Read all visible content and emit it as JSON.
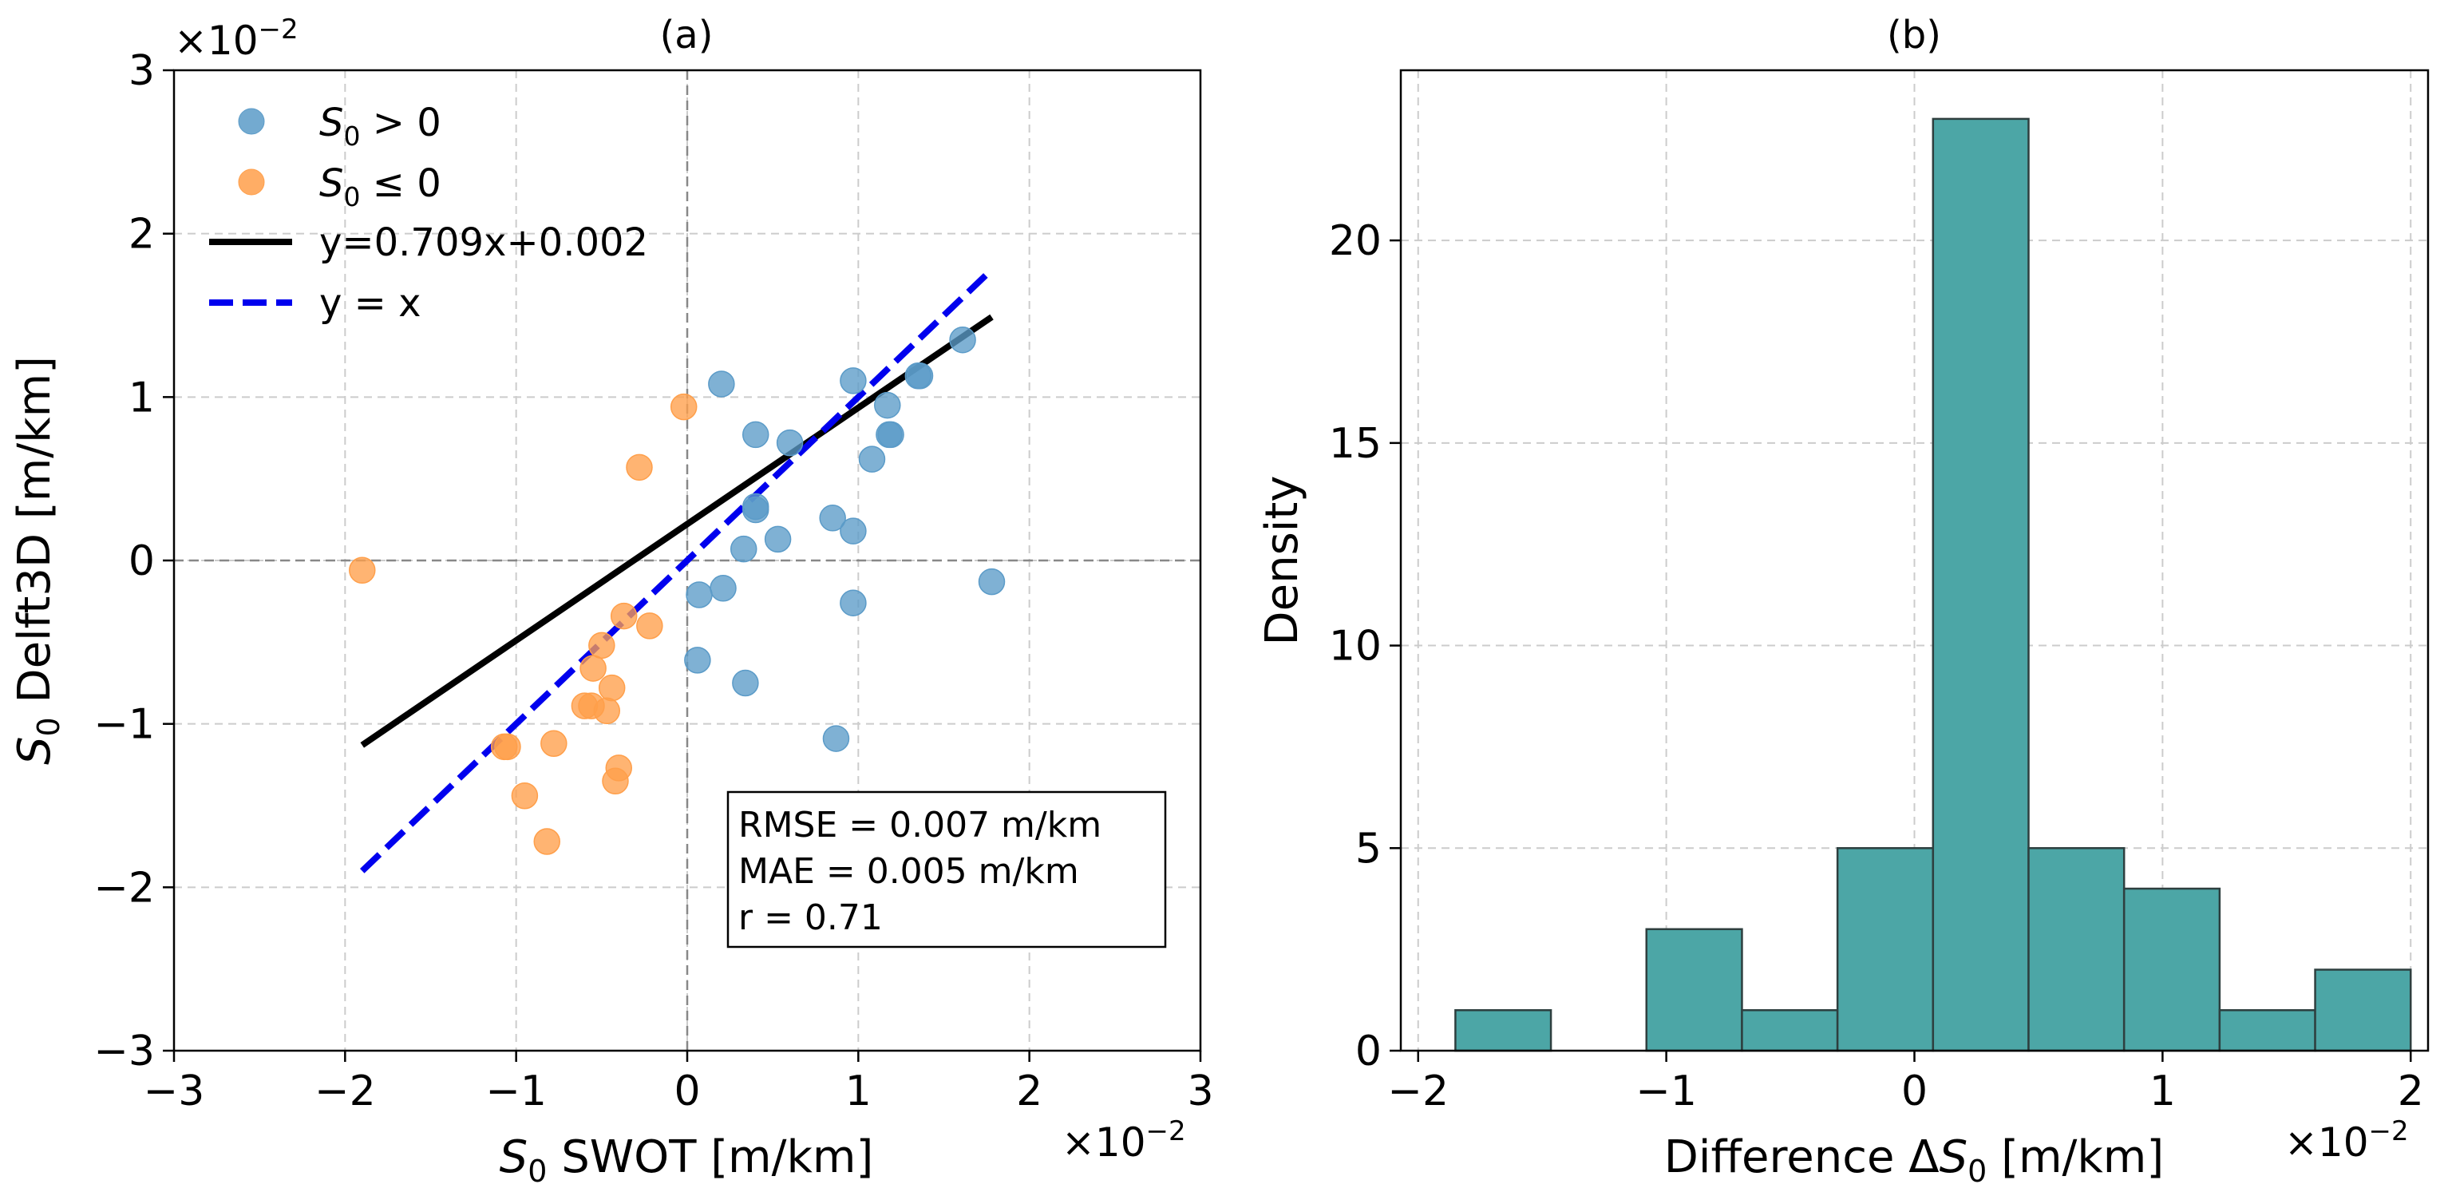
{
  "chart_data": [
    {
      "id": "a",
      "type": "scatter",
      "title": "(a)",
      "xlabel": {
        "italic": "S",
        "sub": "0",
        "rest": " SWOT [m/km]"
      },
      "ylabel": {
        "italic": "S",
        "sub": "0",
        "rest": " Delft3D [m/km]"
      },
      "xlim": [
        -3,
        3
      ],
      "ylim": [
        -3,
        3
      ],
      "xticks": [
        -3,
        -2,
        -1,
        0,
        1,
        2,
        3
      ],
      "yticks": [
        -3,
        -2,
        -1,
        0,
        1,
        2,
        3
      ],
      "xtick_labels": [
        "−3",
        "−2",
        "−1",
        "0",
        "1",
        "2",
        "3"
      ],
      "ytick_labels": [
        "−3",
        "−2",
        "−1",
        "0",
        "1",
        "2",
        "3"
      ],
      "x_scale_label": "×10",
      "y_scale_label": "×10",
      "scale_exponent": "−2",
      "grid": true,
      "legend": {
        "placement": "top-left",
        "entries": [
          {
            "italic": "S",
            "sub": "0",
            "rest": " > 0",
            "kind": "marker",
            "color": "#5b9bc8"
          },
          {
            "italic": "S",
            "sub": "0",
            "rest": " ≤ 0",
            "kind": "marker",
            "color": "#ff9f4a"
          },
          {
            "label": "y=0.709x+0.002",
            "kind": "line",
            "color": "#000000"
          },
          {
            "label": "y = x",
            "kind": "dashed",
            "color": "#0000ee"
          }
        ]
      },
      "series": [
        {
          "name": "S0 > 0",
          "color": "#5b9bc8",
          "points": [
            [
              0.2,
              1.08
            ],
            [
              0.4,
              0.77
            ],
            [
              0.6,
              0.72
            ],
            [
              0.4,
              0.31
            ],
            [
              0.4,
              0.33
            ],
            [
              0.33,
              0.07
            ],
            [
              0.53,
              0.13
            ],
            [
              0.85,
              0.26
            ],
            [
              0.97,
              0.18
            ],
            [
              0.97,
              1.1
            ],
            [
              1.08,
              0.62
            ],
            [
              1.17,
              0.95
            ],
            [
              1.18,
              0.77
            ],
            [
              1.19,
              0.77
            ],
            [
              1.35,
              1.13
            ],
            [
              1.36,
              1.13
            ],
            [
              1.61,
              1.35
            ],
            [
              0.07,
              -0.21
            ],
            [
              0.21,
              -0.17
            ],
            [
              0.06,
              -0.61
            ],
            [
              0.34,
              -0.75
            ],
            [
              0.97,
              -0.26
            ],
            [
              0.87,
              -1.09
            ],
            [
              1.78,
              -0.13
            ]
          ]
        },
        {
          "name": "S0 <= 0",
          "color": "#ff9f4a",
          "points": [
            [
              -0.02,
              0.94
            ],
            [
              -0.28,
              0.57
            ],
            [
              -1.9,
              -0.06
            ],
            [
              -0.37,
              -0.34
            ],
            [
              -0.22,
              -0.4
            ],
            [
              -0.5,
              -0.52
            ],
            [
              -0.55,
              -0.66
            ],
            [
              -0.44,
              -0.78
            ],
            [
              -0.6,
              -0.89
            ],
            [
              -0.56,
              -0.89
            ],
            [
              -0.47,
              -0.92
            ],
            [
              -1.07,
              -1.14
            ],
            [
              -1.05,
              -1.14
            ],
            [
              -0.78,
              -1.12
            ],
            [
              -0.4,
              -1.27
            ],
            [
              -0.42,
              -1.35
            ],
            [
              -0.95,
              -1.44
            ],
            [
              -0.82,
              -1.72
            ]
          ]
        }
      ],
      "lines": [
        {
          "name": "y=0.709x+0.002",
          "color": "#000000",
          "style": "solid",
          "x": [
            -1.9,
            1.78
          ],
          "y": [
            -1.13,
            1.49
          ]
        },
        {
          "name": "y = x",
          "color": "#0000ee",
          "style": "dashed",
          "x": [
            -1.9,
            1.78
          ],
          "y": [
            -1.9,
            1.78
          ]
        }
      ],
      "stats_box": [
        "RMSE = 0.007 m/km",
        "MAE = 0.005 m/km",
        "r = 0.71"
      ]
    },
    {
      "id": "b",
      "type": "bar",
      "title": "(b)",
      "xlabel": {
        "plain": "Difference Δ",
        "italic": "S",
        "sub": "0",
        "rest": " [m/km]"
      },
      "ylabel": "Density",
      "xlim": [
        -2.07,
        2.07
      ],
      "ylim": [
        0,
        24.2
      ],
      "xticks": [
        -2,
        -1,
        0,
        1,
        2
      ],
      "yticks": [
        0,
        5,
        10,
        15,
        20
      ],
      "xtick_labels": [
        "−2",
        "−1",
        "0",
        "1",
        "2"
      ],
      "ytick_labels": [
        "0",
        "5",
        "10",
        "15",
        "20"
      ],
      "x_scale_label": "×10",
      "scale_exponent": "−2",
      "grid": true,
      "bar_color": "#4ca6a6",
      "bin_edges": [
        -1.85,
        -1.465,
        -1.08,
        -0.695,
        -0.31,
        0.075,
        0.46,
        0.845,
        1.23,
        1.615,
        2.0
      ],
      "values": [
        1,
        0,
        3,
        1,
        5,
        23,
        5,
        4,
        1,
        2
      ]
    }
  ]
}
